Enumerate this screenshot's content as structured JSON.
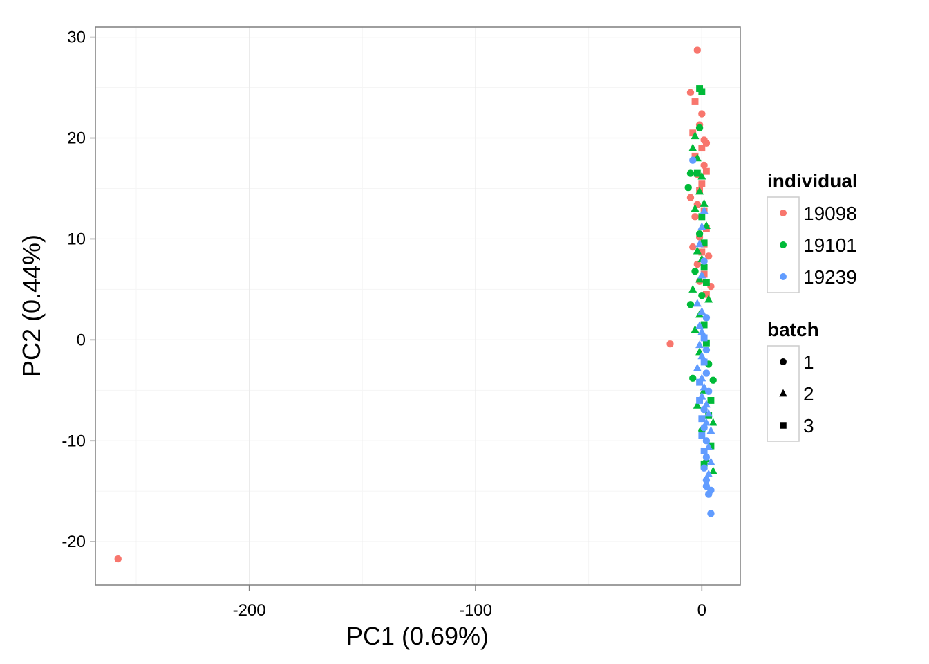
{
  "chart_data": {
    "type": "scatter",
    "title": "",
    "xlabel": "PC1 (0.69%)",
    "ylabel": "PC2 (0.44%)",
    "xlim": [
      -268,
      17
    ],
    "ylim": [
      -24.3,
      31
    ],
    "x_ticks": [
      -200,
      -100,
      0
    ],
    "y_ticks": [
      -20,
      -10,
      0,
      10,
      20,
      30
    ],
    "grid": true,
    "legend_position": "right",
    "color_legend": {
      "title": "individual",
      "entries": [
        {
          "label": "19098",
          "color": "#F8766D"
        },
        {
          "label": "19101",
          "color": "#00BA38"
        },
        {
          "label": "19239",
          "color": "#619CFF"
        }
      ]
    },
    "shape_legend": {
      "title": "batch",
      "entries": [
        {
          "label": "1",
          "shape": "circle"
        },
        {
          "label": "2",
          "shape": "triangle"
        },
        {
          "label": "3",
          "shape": "square"
        }
      ]
    },
    "series": [
      {
        "name": "19098",
        "points": [
          [
            -258,
            -21.7,
            1
          ],
          [
            -14,
            -0.4,
            1
          ],
          [
            -2,
            28.7,
            1
          ],
          [
            -5,
            24.5,
            1
          ],
          [
            -3,
            23.6,
            3
          ],
          [
            0,
            22.4,
            1
          ],
          [
            -1,
            21.3,
            1
          ],
          [
            -4,
            20.5,
            3
          ],
          [
            1,
            19.8,
            1
          ],
          [
            2,
            19.5,
            1
          ],
          [
            -3,
            18.2,
            3
          ],
          [
            1,
            17.3,
            1
          ],
          [
            2,
            16.7,
            3
          ],
          [
            -2,
            16.4,
            1
          ],
          [
            0,
            15.5,
            3
          ],
          [
            -1,
            14.8,
            3
          ],
          [
            -5,
            14.1,
            1
          ],
          [
            -2,
            13.4,
            1
          ],
          [
            1,
            12.8,
            3
          ],
          [
            -3,
            12.2,
            1
          ],
          [
            2,
            11.0,
            3
          ],
          [
            -1,
            10.2,
            1
          ],
          [
            1,
            9.5,
            3
          ],
          [
            -4,
            9.2,
            1
          ],
          [
            0,
            8.7,
            3
          ],
          [
            3,
            8.3,
            1
          ],
          [
            -2,
            7.5,
            1
          ],
          [
            1,
            6.5,
            3
          ],
          [
            -1,
            5.8,
            1
          ],
          [
            4,
            5.3,
            1
          ],
          [
            2,
            4.5,
            3
          ],
          [
            0,
            19.0,
            3
          ]
        ]
      },
      {
        "name": "19101",
        "points": [
          [
            -1,
            24.9,
            3
          ],
          [
            0,
            24.6,
            3
          ],
          [
            -1,
            21.0,
            1
          ],
          [
            -3,
            20.2,
            2
          ],
          [
            -4,
            19.0,
            2
          ],
          [
            -2,
            18.0,
            2
          ],
          [
            -5,
            16.5,
            1
          ],
          [
            -2,
            16.5,
            3
          ],
          [
            0,
            16.2,
            2
          ],
          [
            -6,
            15.1,
            1
          ],
          [
            -1,
            14.7,
            2
          ],
          [
            1,
            13.5,
            2
          ],
          [
            -3,
            13.0,
            2
          ],
          [
            0,
            12.2,
            3
          ],
          [
            2,
            11.3,
            2
          ],
          [
            -1,
            10.5,
            1
          ],
          [
            1,
            9.6,
            3
          ],
          [
            -2,
            8.8,
            2
          ],
          [
            0,
            8.0,
            2
          ],
          [
            1,
            7.2,
            3
          ],
          [
            -3,
            6.8,
            1
          ],
          [
            -1,
            6.0,
            2
          ],
          [
            2,
            5.7,
            3
          ],
          [
            -4,
            5.0,
            2
          ],
          [
            0,
            4.4,
            1
          ],
          [
            3,
            4.0,
            2
          ],
          [
            -5,
            3.5,
            1
          ],
          [
            -1,
            2.5,
            2
          ],
          [
            1,
            1.5,
            3
          ],
          [
            -3,
            1.0,
            2
          ],
          [
            2,
            -0.3,
            3
          ],
          [
            -1,
            -1.2,
            2
          ],
          [
            3,
            -2.4,
            1
          ],
          [
            -4,
            -3.8,
            1
          ],
          [
            5,
            -4.0,
            1
          ],
          [
            1,
            -5.0,
            2
          ],
          [
            4,
            -6.0,
            3
          ],
          [
            -2,
            -6.5,
            2
          ],
          [
            3,
            -7.5,
            3
          ],
          [
            5,
            -8.2,
            2
          ],
          [
            0,
            -9.0,
            1
          ],
          [
            4,
            -10.5,
            3
          ],
          [
            2,
            -11.8,
            2
          ],
          [
            5,
            -13.0,
            2
          ],
          [
            1,
            -12.3,
            3
          ]
        ]
      },
      {
        "name": "19239",
        "points": [
          [
            -4,
            17.8,
            1
          ],
          [
            1,
            12.8,
            2
          ],
          [
            0,
            11.2,
            2
          ],
          [
            -1,
            9.5,
            2
          ],
          [
            1,
            7.8,
            1
          ],
          [
            0,
            6.4,
            2
          ],
          [
            -2,
            3.6,
            2
          ],
          [
            0,
            2.8,
            2
          ],
          [
            2,
            2.2,
            1
          ],
          [
            -1,
            1.4,
            2
          ],
          [
            0,
            0.8,
            2
          ],
          [
            1,
            0.2,
            3
          ],
          [
            -1,
            -0.5,
            2
          ],
          [
            2,
            -1.0,
            1
          ],
          [
            0,
            -1.6,
            2
          ],
          [
            1,
            -2.2,
            3
          ],
          [
            -2,
            -2.8,
            2
          ],
          [
            2,
            -3.3,
            1
          ],
          [
            0,
            -3.8,
            2
          ],
          [
            -1,
            -4.2,
            3
          ],
          [
            1,
            -4.7,
            2
          ],
          [
            3,
            -5.1,
            1
          ],
          [
            0,
            -5.6,
            2
          ],
          [
            -1,
            -6.0,
            3
          ],
          [
            2,
            -6.4,
            2
          ],
          [
            1,
            -6.9,
            1
          ],
          [
            3,
            -7.3,
            2
          ],
          [
            0,
            -7.8,
            3
          ],
          [
            2,
            -8.2,
            2
          ],
          [
            1,
            -8.7,
            1
          ],
          [
            4,
            -9.0,
            2
          ],
          [
            0,
            -9.5,
            3
          ],
          [
            2,
            -10.0,
            1
          ],
          [
            3,
            -10.6,
            2
          ],
          [
            1,
            -11.0,
            3
          ],
          [
            2,
            -11.6,
            1
          ],
          [
            4,
            -12.1,
            2
          ],
          [
            1,
            -12.7,
            1
          ],
          [
            3,
            -13.3,
            2
          ],
          [
            2,
            -13.9,
            1
          ],
          [
            2,
            -14.5,
            1
          ],
          [
            4,
            -14.9,
            1
          ],
          [
            3,
            -15.3,
            1
          ],
          [
            4,
            -17.2,
            1
          ]
        ]
      }
    ]
  }
}
